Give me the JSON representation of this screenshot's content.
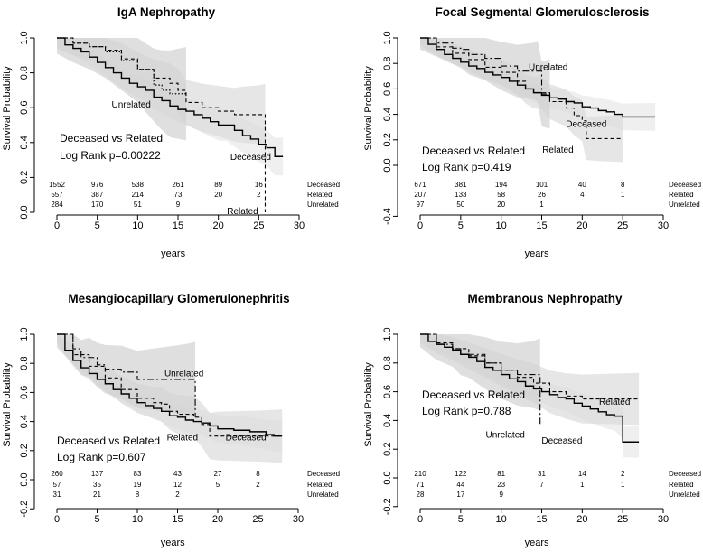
{
  "chart_data": [
    {
      "type": "line",
      "title": "IgA Nephropathy",
      "xlabel": "years",
      "ylabel": "Survival Probability",
      "xlim": [
        0,
        30
      ],
      "ylim": [
        0,
        1
      ],
      "xticks": [
        "0",
        "5",
        "10",
        "15",
        "20",
        "25",
        "30"
      ],
      "yticks": [
        "0.0",
        "0.2",
        "0.4",
        "0.6",
        "0.8",
        "1.0"
      ],
      "stat_lines": [
        "Deceased vs Related",
        "Log Rank p=0.00222"
      ],
      "series": [
        {
          "name": "Deceased",
          "style": "solid",
          "x": [
            0,
            1,
            2,
            3,
            4,
            5,
            6,
            7,
            8,
            9,
            10,
            11,
            12,
            13,
            14,
            15,
            16,
            17,
            18,
            19,
            20,
            21,
            22,
            23,
            24,
            25,
            26,
            27,
            28
          ],
          "y": [
            1.0,
            0.96,
            0.94,
            0.92,
            0.89,
            0.86,
            0.83,
            0.8,
            0.77,
            0.74,
            0.72,
            0.7,
            0.66,
            0.64,
            0.61,
            0.59,
            0.58,
            0.56,
            0.54,
            0.52,
            0.5,
            0.5,
            0.47,
            0.44,
            0.42,
            0.39,
            0.37,
            0.32,
            0.32
          ]
        },
        {
          "name": "Related",
          "style": "dashed",
          "x": [
            0,
            2,
            4,
            6,
            8,
            10,
            12,
            14,
            15,
            16,
            18,
            20,
            22,
            23,
            25,
            25.8,
            25.8
          ],
          "y": [
            1.0,
            0.97,
            0.95,
            0.93,
            0.88,
            0.82,
            0.77,
            0.74,
            0.7,
            0.63,
            0.6,
            0.58,
            0.56,
            0.56,
            0.56,
            0.56,
            0.0
          ]
        },
        {
          "name": "Unrelated",
          "style": "dotted",
          "x": [
            0,
            2,
            4,
            6,
            8,
            10,
            12,
            13,
            14,
            16
          ],
          "y": [
            1.0,
            0.97,
            0.95,
            0.92,
            0.87,
            0.82,
            0.73,
            0.7,
            0.68,
            0.68
          ]
        }
      ],
      "curve_labels": [
        {
          "text": "Unrelated",
          "x": 9.2,
          "y": 0.6
        },
        {
          "text": "Deceased",
          "x": 24.0,
          "y": 0.3
        },
        {
          "text": "Related",
          "x": 23.0,
          "y": -0.01
        }
      ],
      "risk_table": {
        "x": [
          0,
          5,
          10,
          15,
          20,
          25
        ],
        "rows": [
          {
            "name": "Deceased",
            "counts": [
              "1552",
              "976",
              "538",
              "261",
              "89",
              "16"
            ]
          },
          {
            "name": "Related",
            "counts": [
              "557",
              "387",
              "214",
              "73",
              "20",
              "2"
            ]
          },
          {
            "name": "Unrelated",
            "counts": [
              "284",
              "170",
              "51",
              "9",
              "",
              ""
            ]
          }
        ]
      }
    },
    {
      "type": "line",
      "title": "Focal Segmental Glomerulosclerosis",
      "xlabel": "years",
      "ylabel": "Survival Probability",
      "xlim": [
        0,
        30
      ],
      "ylim": [
        -0.4,
        1
      ],
      "xticks": [
        "0",
        "5",
        "10",
        "15",
        "20",
        "25",
        "30"
      ],
      "yticks": [
        "-0.4",
        "0.0",
        "0.2",
        "0.4",
        "0.6",
        "0.8",
        "1.0"
      ],
      "stat_lines": [
        "Deceased vs Related",
        "Log Rank p=0.419"
      ],
      "series": [
        {
          "name": "Deceased",
          "style": "solid",
          "x": [
            0,
            1,
            2,
            3,
            4,
            5,
            6,
            7,
            8,
            9,
            10,
            11,
            12,
            13,
            14,
            15,
            16,
            17,
            18,
            19,
            20,
            21,
            22,
            23,
            24,
            25,
            26,
            29
          ],
          "y": [
            1.0,
            0.95,
            0.91,
            0.87,
            0.84,
            0.81,
            0.78,
            0.76,
            0.73,
            0.71,
            0.69,
            0.66,
            0.63,
            0.6,
            0.57,
            0.55,
            0.53,
            0.52,
            0.5,
            0.49,
            0.46,
            0.45,
            0.43,
            0.42,
            0.4,
            0.38,
            0.38,
            0.38
          ]
        },
        {
          "name": "Related",
          "style": "dashed",
          "x": [
            0,
            2,
            4,
            6,
            8,
            10,
            12,
            13,
            14,
            15,
            16,
            18,
            19,
            20,
            20.5,
            22,
            25
          ],
          "y": [
            1.0,
            0.93,
            0.88,
            0.83,
            0.77,
            0.73,
            0.66,
            0.6,
            0.57,
            0.57,
            0.5,
            0.45,
            0.39,
            0.35,
            0.21,
            0.21,
            0.21
          ]
        },
        {
          "name": "Unrelated",
          "style": "dashdot",
          "x": [
            0,
            2,
            4,
            5,
            6,
            8,
            10,
            12,
            14,
            14.5,
            15,
            16
          ],
          "y": [
            1.0,
            0.96,
            0.92,
            0.91,
            0.87,
            0.84,
            0.78,
            0.74,
            0.74,
            0.74,
            0.56,
            0.56
          ]
        }
      ],
      "curve_labels": [
        {
          "text": "Unrelated",
          "x": 15.8,
          "y": 0.75
        },
        {
          "text": "Deceased",
          "x": 20.5,
          "y": 0.3
        },
        {
          "text": "Related",
          "x": 17.0,
          "y": 0.1
        }
      ],
      "risk_table": {
        "x": [
          0,
          5,
          10,
          15,
          20,
          25
        ],
        "rows": [
          {
            "name": "Deceased",
            "counts": [
              "671",
              "381",
              "194",
              "101",
              "40",
              "8"
            ]
          },
          {
            "name": "Related",
            "counts": [
              "207",
              "133",
              "58",
              "26",
              "4",
              "1"
            ]
          },
          {
            "name": "Unrelated",
            "counts": [
              "97",
              "50",
              "20",
              "1",
              "",
              ""
            ]
          }
        ]
      }
    },
    {
      "type": "line",
      "title": "Mesangiocapillary Glomerulonephritis",
      "xlabel": "years",
      "ylabel": "Survival Probability",
      "xlim": [
        0,
        30
      ],
      "ylim": [
        -0.2,
        1
      ],
      "xticks": [
        "0",
        "5",
        "10",
        "15",
        "20",
        "25",
        "30"
      ],
      "yticks": [
        "-0.2",
        "0.0",
        "0.2",
        "0.4",
        "0.6",
        "0.8",
        "1.0"
      ],
      "stat_lines": [
        "Deceased vs Related",
        "Log Rank p=0.607"
      ],
      "series": [
        {
          "name": "Deceased",
          "style": "solid",
          "x": [
            0,
            1,
            2,
            3,
            4,
            5,
            6,
            7,
            8,
            9,
            10,
            11,
            12,
            13,
            14,
            15,
            16,
            17,
            18,
            19,
            20,
            22,
            24,
            26,
            27,
            28
          ],
          "y": [
            1.0,
            0.89,
            0.82,
            0.77,
            0.73,
            0.69,
            0.66,
            0.62,
            0.59,
            0.56,
            0.53,
            0.51,
            0.49,
            0.47,
            0.44,
            0.43,
            0.41,
            0.4,
            0.39,
            0.37,
            0.35,
            0.34,
            0.33,
            0.31,
            0.3,
            0.3
          ]
        },
        {
          "name": "Related",
          "style": "dashed",
          "x": [
            0,
            2,
            4,
            6,
            8,
            10,
            12,
            13,
            14,
            15,
            17,
            18,
            19,
            20,
            25,
            28
          ],
          "y": [
            1.0,
            0.86,
            0.78,
            0.7,
            0.62,
            0.56,
            0.53,
            0.52,
            0.47,
            0.45,
            0.43,
            0.38,
            0.3,
            0.3,
            0.3,
            0.3
          ]
        },
        {
          "name": "Unrelated",
          "style": "dashdot",
          "x": [
            0,
            2,
            3,
            4,
            5,
            6,
            8,
            10,
            12,
            14,
            16,
            17.2,
            17.2
          ],
          "y": [
            1.0,
            0.9,
            0.84,
            0.84,
            0.79,
            0.76,
            0.74,
            0.69,
            0.69,
            0.69,
            0.69,
            0.69,
            0.43
          ]
        }
      ],
      "curve_labels": [
        {
          "text": "Unrelated",
          "x": 15.8,
          "y": 0.71
        },
        {
          "text": "Related",
          "x": 15.6,
          "y": 0.27
        },
        {
          "text": "Deceased",
          "x": 23.5,
          "y": 0.27
        }
      ],
      "risk_table": {
        "x": [
          0,
          5,
          10,
          15,
          20,
          25
        ],
        "rows": [
          {
            "name": "Deceased",
            "counts": [
              "260",
              "137",
              "83",
              "43",
              "27",
              "8"
            ]
          },
          {
            "name": "Related",
            "counts": [
              "57",
              "35",
              "19",
              "12",
              "5",
              "2"
            ]
          },
          {
            "name": "Unrelated",
            "counts": [
              "31",
              "21",
              "8",
              "2",
              "",
              ""
            ]
          }
        ]
      }
    },
    {
      "type": "line",
      "title": "Membranous Nephropathy",
      "xlabel": "years",
      "ylabel": "Survival Probability",
      "xlim": [
        0,
        30
      ],
      "ylim": [
        -0.2,
        1
      ],
      "xticks": [
        "0",
        "5",
        "10",
        "15",
        "20",
        "25",
        "30"
      ],
      "yticks": [
        "-0.2",
        "0.0",
        "0.2",
        "0.4",
        "0.6",
        "0.8",
        "1.0"
      ],
      "stat_lines": [
        "Deceased vs Related",
        "Log Rank p=0.788"
      ],
      "series": [
        {
          "name": "Deceased",
          "style": "solid",
          "x": [
            0,
            1,
            2,
            3,
            4,
            5,
            6,
            7,
            8,
            9,
            10,
            11,
            12,
            13,
            14,
            15,
            16,
            17,
            18,
            19,
            20,
            21,
            22,
            23,
            24,
            25,
            25,
            27
          ],
          "y": [
            1.0,
            0.95,
            0.93,
            0.91,
            0.89,
            0.86,
            0.84,
            0.81,
            0.77,
            0.75,
            0.72,
            0.69,
            0.67,
            0.64,
            0.62,
            0.6,
            0.58,
            0.56,
            0.55,
            0.52,
            0.5,
            0.48,
            0.46,
            0.44,
            0.43,
            0.38,
            0.25,
            0.25
          ]
        },
        {
          "name": "Related",
          "style": "dashed",
          "x": [
            0,
            2,
            4,
            6,
            8,
            10,
            12,
            14,
            16,
            18,
            20,
            27
          ],
          "y": [
            1.0,
            0.94,
            0.9,
            0.85,
            0.8,
            0.75,
            0.7,
            0.66,
            0.6,
            0.57,
            0.55,
            0.55
          ]
        },
        {
          "name": "Unrelated",
          "style": "dashdot",
          "x": [
            0,
            2,
            4,
            5,
            6,
            8,
            10,
            12,
            14,
            14.8,
            14.8
          ],
          "y": [
            1.0,
            0.93,
            0.9,
            0.86,
            0.86,
            0.8,
            0.75,
            0.72,
            0.72,
            0.72,
            0.36
          ]
        }
      ],
      "curve_labels": [
        {
          "text": "Related",
          "x": 24.0,
          "y": 0.51
        },
        {
          "text": "Unrelated",
          "x": 10.5,
          "y": 0.28
        },
        {
          "text": "Deceased",
          "x": 17.5,
          "y": 0.24
        }
      ],
      "risk_table": {
        "x": [
          0,
          5,
          10,
          15,
          20,
          25
        ],
        "rows": [
          {
            "name": "Deceased",
            "counts": [
              "210",
              "122",
              "81",
              "31",
              "14",
              "2"
            ]
          },
          {
            "name": "Related",
            "counts": [
              "71",
              "44",
              "23",
              "7",
              "1",
              "1"
            ]
          },
          {
            "name": "Unrelated",
            "counts": [
              "28",
              "17",
              "9",
              "",
              "",
              ""
            ]
          }
        ]
      }
    }
  ]
}
